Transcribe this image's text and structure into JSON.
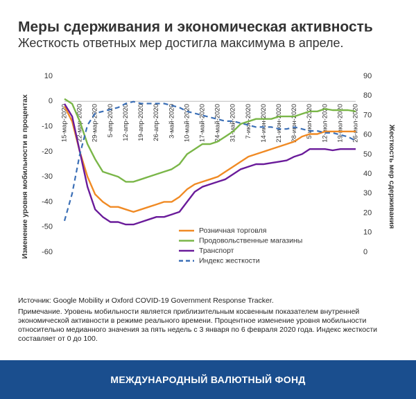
{
  "chart_data": {
    "type": "line",
    "title": "Меры сдерживания и экономическая активность",
    "subtitle": "Жесткость ответных мер достигла максимума в апреле.",
    "ylabel": "Изменение уровня мобильности в процентах",
    "y2label": "Жесткость мер сдерживания",
    "categories": [
      "15-мар-2020",
      null,
      "22-мар-2020",
      null,
      "29-мар-2020",
      null,
      "5-апр-2020",
      null,
      "12-апр-2020",
      null,
      "19-апр-2020",
      null,
      "26-апр-2020",
      null,
      "3-май-2020",
      null,
      "10-май-2020",
      null,
      "17-май-2020",
      null,
      "24-май-2020",
      null,
      "31-май-2020",
      null,
      "7-июн-2020",
      null,
      "14-июн-2020",
      null,
      "21-июн-2020",
      null,
      "28-июн-2020",
      null,
      "5-июл-2020",
      null,
      "12-июл-2020",
      null,
      "19-июл-2020",
      null,
      "26-июл-2020"
    ],
    "ylim": [
      -60,
      10
    ],
    "yticks": [
      10,
      0,
      -10,
      -20,
      -30,
      -40,
      -50,
      -60
    ],
    "y2lim": [
      0,
      90
    ],
    "y2ticks": [
      90,
      80,
      70,
      60,
      50,
      40,
      30,
      20,
      10,
      0
    ],
    "series": [
      {
        "name": "Розничная торговля",
        "color": "#f08a24",
        "values": [
          -2,
          -8,
          -20,
          -30,
          -37,
          -40,
          -42,
          -42,
          -43,
          -44,
          -43,
          -42,
          -41,
          -40,
          -40,
          -38,
          -35,
          -33,
          -32,
          -31,
          -30,
          -28,
          -26,
          -24,
          -22,
          -21,
          -20,
          -19,
          -18,
          -17,
          -16,
          -14,
          -13,
          -13,
          -12,
          -12,
          -12,
          -12,
          -12
        ]
      },
      {
        "name": "Продовольственные магазины",
        "color": "#7ab648",
        "values": [
          1,
          -1,
          -8,
          -17,
          -23,
          -28,
          -29,
          -30,
          -32,
          -32,
          -31,
          -30,
          -29,
          -28,
          -27,
          -25,
          -21,
          -19,
          -17,
          -17,
          -16,
          -14,
          -12,
          -9,
          -8,
          -7,
          -7,
          -7,
          -6,
          -6,
          -6,
          -5,
          -4,
          -4,
          -3,
          -3.5,
          -3.5,
          -3.5,
          -4
        ]
      },
      {
        "name": "Транспорт",
        "color": "#6a1b9a",
        "values": [
          -1,
          -6,
          -20,
          -34,
          -43,
          -46,
          -48,
          -48,
          -49,
          -49,
          -48,
          -47,
          -46,
          -46,
          -45,
          -44,
          -40,
          -36,
          -34,
          -33,
          -32,
          -31,
          -29,
          -27,
          -26,
          -25,
          -25,
          -24.5,
          -24,
          -23.5,
          -22,
          -21,
          -19,
          -19,
          -19,
          -19.5,
          -19,
          -19,
          -19
        ]
      },
      {
        "name": "Индекс жесткости",
        "color": "#3b6fb6",
        "dashed": true,
        "axis": "y2",
        "values": [
          16,
          30,
          50,
          65,
          71,
          72,
          73,
          74,
          76,
          77,
          76,
          76,
          76,
          76,
          75,
          74,
          72,
          71,
          70,
          69,
          68,
          67,
          67,
          66,
          65,
          64,
          64,
          64,
          63,
          63,
          64,
          63,
          62,
          62,
          61,
          61,
          60,
          59,
          57
        ]
      }
    ]
  },
  "source": "Источник: Google Mobility и Oxford COVID-19 Government Response Tracker.",
  "note": "Примечание. Уровень мобильности является приблизительным косвенным показателем внутренней экономической активности в режиме реального времени. Процентное изменение уровня мобильности относительно медианного значения за пять недель с 3 января по 6 февраля 2020 года. Индекс жесткости составляет от 0 до 100.",
  "footer": "МЕЖДУНАРОДНЫЙ ВАЛЮТНЫЙ ФОНД"
}
